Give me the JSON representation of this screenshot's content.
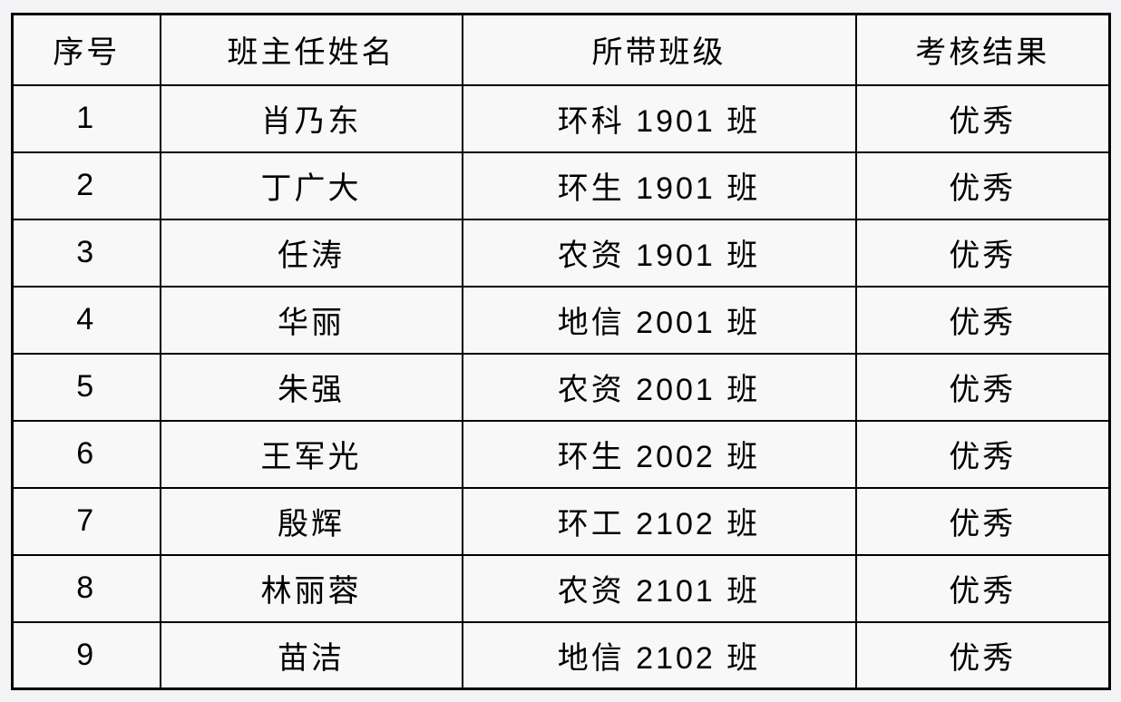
{
  "table": {
    "headers": [
      "序号",
      "班主任姓名",
      "所带班级",
      "考核结果"
    ],
    "rows": [
      {
        "no": "1",
        "teacher": "肖乃东",
        "class": "环科 1901 班",
        "result": "优秀"
      },
      {
        "no": "2",
        "teacher": "丁广大",
        "class": "环生 1901 班",
        "result": "优秀"
      },
      {
        "no": "3",
        "teacher": "任涛",
        "class": "农资 1901 班",
        "result": "优秀"
      },
      {
        "no": "4",
        "teacher": "华丽",
        "class": "地信 2001 班",
        "result": "优秀"
      },
      {
        "no": "5",
        "teacher": "朱强",
        "class": "农资 2001 班",
        "result": "优秀"
      },
      {
        "no": "6",
        "teacher": "王军光",
        "class": "环生 2002 班",
        "result": "优秀"
      },
      {
        "no": "7",
        "teacher": "殷辉",
        "class": "环工 2102 班",
        "result": "优秀"
      },
      {
        "no": "8",
        "teacher": "林丽蓉",
        "class": "农资 2101 班",
        "result": "优秀"
      },
      {
        "no": "9",
        "teacher": "苗洁",
        "class": "地信 2102 班",
        "result": "优秀"
      }
    ]
  },
  "colors": {
    "border": "#000000",
    "cell_background": "#f8f8f9",
    "page_background": "#f4f4f6",
    "text": "#000000"
  }
}
